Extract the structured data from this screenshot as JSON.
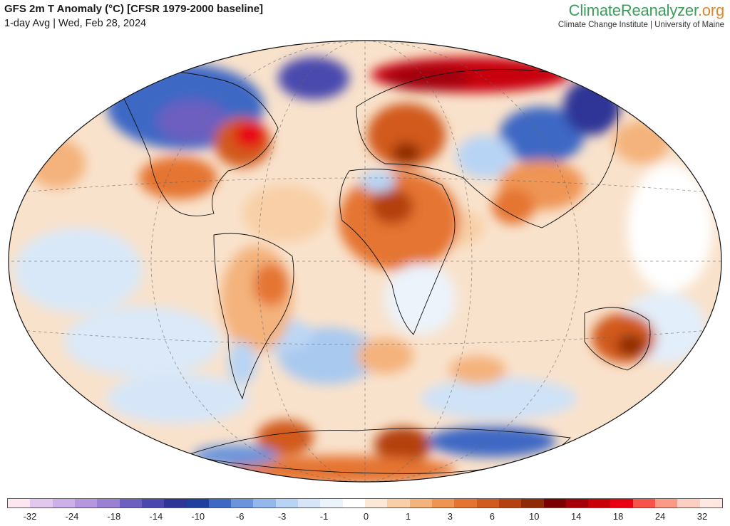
{
  "header": {
    "title": "GFS 2m T Anomaly (°C) [CFSR 1979-2000 baseline]",
    "subtitle": "1-day Avg | Wed, Feb 28, 2024"
  },
  "brand": {
    "name_main": "ClimateReanalyzer",
    "name_tld": ".org",
    "affiliation": "Climate Change Institute | University of Maine"
  },
  "colorbar": {
    "colors": [
      "#fde6ef",
      "#e2c8ee",
      "#cdb0e8",
      "#b597de",
      "#9a80d2",
      "#6c5fc0",
      "#4a48ae",
      "#2e3596",
      "#1f3f9e",
      "#3d68c4",
      "#6b94dc",
      "#94b8ec",
      "#b8d4f4",
      "#d6e6f8",
      "#ecf3fb",
      "#ffffff",
      "#fbe8d6",
      "#f8cfa6",
      "#f4b27c",
      "#ef9554",
      "#e57433",
      "#d15a1e",
      "#b4410f",
      "#8e2b06",
      "#7b0000",
      "#a3000a",
      "#c8000a",
      "#e80014",
      "#f8534a",
      "#fb9a86",
      "#fdcfc2",
      "#fee8e0"
    ],
    "ticks": [
      "-32",
      "-24",
      "-18",
      "-14",
      "-10",
      "-6",
      "-3",
      "-1",
      "0",
      "1",
      "3",
      "6",
      "10",
      "14",
      "18",
      "24",
      "32"
    ]
  }
}
